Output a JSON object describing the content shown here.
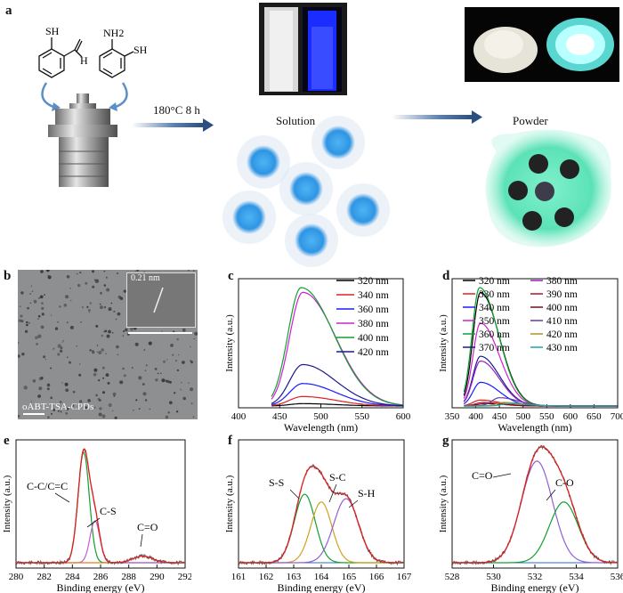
{
  "panel_a": {
    "label": "a",
    "reaction_condition": "180°C 8 h",
    "solution_label": "Solution",
    "powder_label": "Powder",
    "molecule1": {
      "sh": "SH",
      "h": "H"
    },
    "molecule2": {
      "nh2": "NH2",
      "sh": "SH"
    },
    "colors": {
      "dot_blue": "#3aa0e8",
      "powder_glow": "#63e3bb"
    }
  },
  "panel_b": {
    "label": "b",
    "inset_label": "0.21 nm",
    "sample_label": "oABT-TSA-CPDs"
  },
  "panel_c": {
    "label": "c"
  },
  "panel_d": {
    "label": "d"
  },
  "panel_e": {
    "label": "e"
  },
  "panel_f": {
    "label": "f"
  },
  "panel_g": {
    "label": "g"
  },
  "chart_data": [
    {
      "id": "c",
      "type": "line",
      "xlabel": "Wavelength (nm)",
      "ylabel": "Intensity (a.u.)",
      "xlim": [
        400,
        600
      ],
      "xticks": [
        400,
        450,
        500,
        550,
        600
      ],
      "legend_position": "top-right",
      "series": [
        {
          "name": "320 nm",
          "color": "#000000",
          "peak_x": 478,
          "peak": 0.02
        },
        {
          "name": "340 nm",
          "color": "#e02020",
          "peak_x": 478,
          "peak": 0.08
        },
        {
          "name": "360 nm",
          "color": "#1a1aff",
          "peak_x": 478,
          "peak": 0.19
        },
        {
          "name": "380 nm",
          "color": "#d020d0",
          "peak_x": 478,
          "peak": 0.96
        },
        {
          "name": "400 nm",
          "color": "#10a030",
          "peak_x": 476,
          "peak": 1.0
        },
        {
          "name": "420 nm",
          "color": "#1a1a90",
          "peak_x": 478,
          "peak": 0.35
        }
      ]
    },
    {
      "id": "d",
      "type": "line",
      "xlabel": "Wavelength (nm)",
      "ylabel": "Intensity (a.u.)",
      "xlim": [
        350,
        700
      ],
      "xticks": [
        350,
        400,
        450,
        500,
        550,
        600,
        650,
        700
      ],
      "legend_position": "top-right",
      "series": [
        {
          "name": "320 nm",
          "color": "#000000",
          "peak_x": 410,
          "peak": 0.96
        },
        {
          "name": "330 nm",
          "color": "#e02020",
          "peak_x": 410,
          "peak": 0.05
        },
        {
          "name": "340 nm",
          "color": "#1a1aff",
          "peak_x": 410,
          "peak": 0.2
        },
        {
          "name": "350 nm",
          "color": "#d020d0",
          "peak_x": 410,
          "peak": 0.7
        },
        {
          "name": "360 nm",
          "color": "#10a030",
          "peak_x": 408,
          "peak": 1.0
        },
        {
          "name": "370 nm",
          "color": "#1a1a90",
          "peak_x": 410,
          "peak": 0.42
        },
        {
          "name": "380 nm",
          "color": "#9a20c0",
          "peak_x": 410,
          "peak": 0.38
        },
        {
          "name": "390 nm",
          "color": "#b01030",
          "peak_x": 415,
          "peak": 0.03
        },
        {
          "name": "400 nm",
          "color": "#701010",
          "peak_x": 420,
          "peak": 0.02
        },
        {
          "name": "410 nm",
          "color": "#6040a0",
          "peak_x": 450,
          "peak": 0.07
        },
        {
          "name": "420 nm",
          "color": "#b09020",
          "peak_x": 460,
          "peak": 0.03
        },
        {
          "name": "430 nm",
          "color": "#20a0b0",
          "peak_x": 470,
          "peak": 0.02
        }
      ]
    },
    {
      "id": "e",
      "type": "line",
      "xlabel": "Binding energy  (eV)",
      "ylabel": "Intensity (a.u.)",
      "xlim": [
        280,
        292
      ],
      "xticks": [
        280,
        282,
        284,
        286,
        288,
        290,
        292
      ],
      "annotations": [
        "C-C/C=C",
        "C-S",
        "C=O"
      ],
      "peaks": [
        {
          "name": "C-C/C=C",
          "center": 284.8,
          "height": 1.0,
          "width": 0.4,
          "color": "#10a030"
        },
        {
          "name": "C-S",
          "center": 285.6,
          "height": 0.38,
          "width": 0.35,
          "color": "#c060d0"
        },
        {
          "name": "C=O",
          "center": 289.0,
          "height": 0.06,
          "width": 0.7,
          "color": "#e08020"
        }
      ]
    },
    {
      "id": "f",
      "type": "line",
      "xlabel": "Binding energy  (eV)",
      "ylabel": "Intensity (a.u.)",
      "xlim": [
        161,
        167
      ],
      "xticks": [
        161,
        162,
        163,
        164,
        165,
        166,
        167
      ],
      "annotations": [
        "S-S",
        "S-C",
        "S-H"
      ],
      "peaks": [
        {
          "name": "S-S",
          "center": 163.4,
          "height": 0.62,
          "width": 0.38,
          "color": "#10a030"
        },
        {
          "name": "S-C",
          "center": 164.0,
          "height": 0.55,
          "width": 0.38,
          "color": "#d0a020"
        },
        {
          "name": "S-H",
          "center": 164.9,
          "height": 0.58,
          "width": 0.45,
          "color": "#9060d0"
        }
      ]
    },
    {
      "id": "g",
      "type": "line",
      "xlabel": "Binding energy  (eV)",
      "ylabel": "Intensity (a.u.)",
      "xlim": [
        528,
        536
      ],
      "xticks": [
        528,
        530,
        532,
        534,
        536
      ],
      "annotations": [
        "C=O",
        "C-O"
      ],
      "peaks": [
        {
          "name": "C=O",
          "center": 532.1,
          "height": 0.92,
          "width": 0.75,
          "color": "#9060d0"
        },
        {
          "name": "C-O",
          "center": 533.4,
          "height": 0.55,
          "width": 0.7,
          "color": "#10a030"
        }
      ]
    }
  ]
}
